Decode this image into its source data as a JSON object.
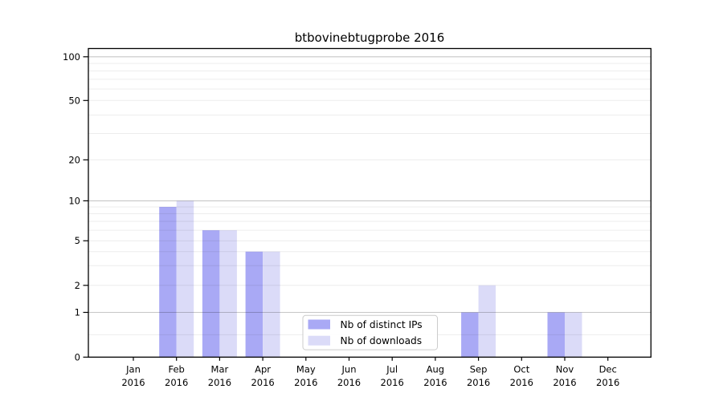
{
  "chart_data": {
    "type": "bar",
    "title": "btbovinebtugprobe 2016",
    "x_year_label": "2016",
    "categories": [
      "Jan",
      "Feb",
      "Mar",
      "Apr",
      "May",
      "Jun",
      "Jul",
      "Aug",
      "Sep",
      "Oct",
      "Nov",
      "Dec"
    ],
    "series": [
      {
        "name": "Nb of distinct IPs",
        "color": "#a9a9f5",
        "values": [
          0,
          9,
          6,
          4,
          0,
          0,
          0,
          0,
          1,
          0,
          1,
          0
        ]
      },
      {
        "name": "Nb of downloads",
        "color": "#dbdbf8",
        "values": [
          0,
          10,
          6,
          4,
          0,
          0,
          0,
          0,
          2,
          0,
          1,
          0
        ]
      }
    ],
    "xlabel": "",
    "ylabel": "",
    "y_scale": "symlog",
    "ylim": [
      0,
      115
    ],
    "y_major_ticks": [
      0,
      1,
      2,
      5,
      10,
      20,
      50,
      100
    ],
    "y_major_gridlines": [
      1,
      10,
      100
    ],
    "y_minor_gridlines": [
      0.5,
      2,
      3,
      4,
      5,
      6,
      7,
      8,
      9,
      20,
      30,
      40,
      50,
      60,
      70,
      80,
      90
    ],
    "grid": true,
    "legend_position": "lower center"
  },
  "style": {
    "background": "#ffffff",
    "axis_color": "#000000",
    "text_color": "#000000",
    "major_grid_rgba": "rgba(0,0,0,0.22)",
    "minor_grid_rgba": "rgba(0,0,0,0.075)",
    "legend_border": "#cccccc",
    "legend_bg": "rgba(255,255,255,0.9)"
  }
}
